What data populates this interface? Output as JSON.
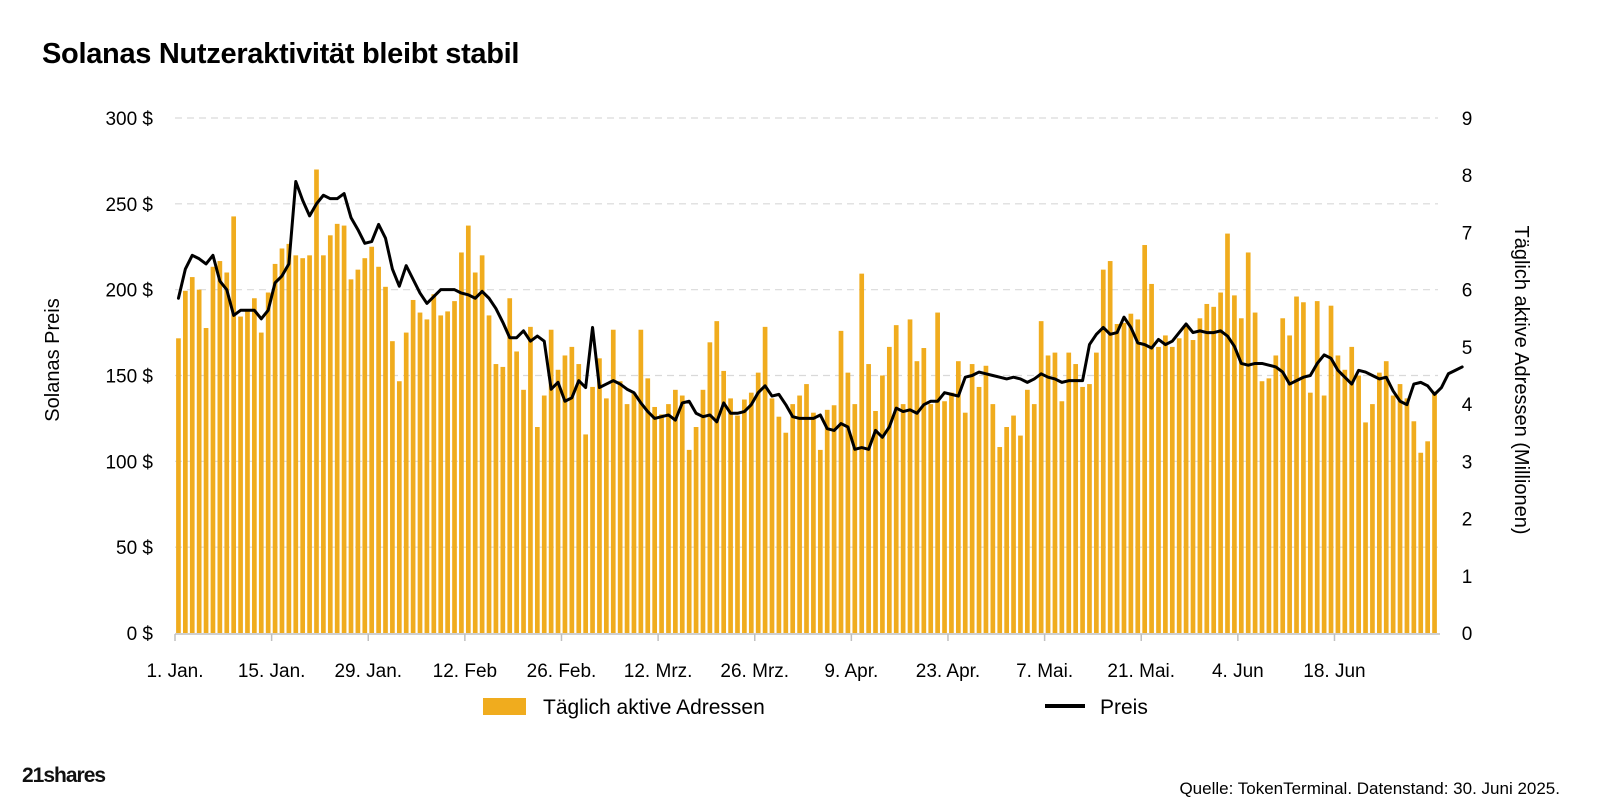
{
  "title": "Solanas Nutzeraktivität bleibt stabil",
  "source": "Quelle: TokenTerminal. Datenstand: 30. Juni 2025.",
  "logo": "21shares",
  "colors": {
    "bars": "#F0AC1E",
    "line": "#000000",
    "grid": "#d9d9d9"
  },
  "chart_data": {
    "type": "bar",
    "ylabel": "Solanas Preis",
    "y2label": "Täglich aktive Adressen (Millionen)",
    "y_ticks": [
      "0 $",
      "50 $",
      "100 $",
      "150 $",
      "200 $",
      "250 $",
      "300 $"
    ],
    "y2_ticks": [
      "0",
      "1",
      "2",
      "3",
      "4",
      "5",
      "6",
      "7",
      "8",
      "9"
    ],
    "ylim": [
      0,
      300
    ],
    "y2lim": [
      0,
      9
    ],
    "x_ticks": [
      "1. Jan.",
      "15. Jan.",
      "29. Jan.",
      "12. Feb",
      "26. Feb.",
      "12. Mrz.",
      "26. Mrz.",
      "9. Apr.",
      "23. Apr.",
      "7. Mai.",
      "21. Mai.",
      "4. Jun",
      "18. Jun"
    ],
    "x_tick_days": [
      0,
      14,
      28,
      42,
      56,
      70,
      84,
      98,
      112,
      126,
      140,
      154,
      168
    ],
    "legend_position": "bottom",
    "grid": true,
    "series": [
      {
        "name": "Täglich aktive Adressen",
        "type": "bar",
        "axis": "right",
        "values": [
          5.15,
          5.98,
          6.22,
          6.0,
          5.33,
          6.4,
          6.5,
          6.3,
          7.28,
          5.53,
          5.62,
          5.85,
          5.25,
          5.95,
          6.45,
          6.72,
          6.8,
          6.6,
          6.55,
          6.6,
          8.1,
          6.6,
          6.95,
          7.15,
          7.12,
          6.18,
          6.35,
          6.55,
          6.75,
          6.4,
          6.05,
          5.1,
          4.4,
          5.25,
          5.82,
          5.6,
          5.48,
          5.92,
          5.55,
          5.62,
          5.8,
          6.65,
          7.12,
          6.3,
          6.6,
          5.55,
          4.7,
          4.65,
          5.85,
          4.92,
          4.25,
          5.35,
          3.6,
          4.15,
          5.3,
          4.6,
          4.85,
          5.0,
          4.7,
          3.47,
          4.3,
          4.8,
          4.1,
          5.3,
          4.4,
          4.0,
          4.2,
          5.3,
          4.45,
          3.95,
          3.82,
          4.0,
          4.25,
          4.15,
          3.2,
          3.6,
          4.25,
          5.08,
          5.45,
          4.58,
          4.1,
          3.8,
          4.08,
          4.2,
          4.55,
          5.35,
          4.1,
          3.78,
          3.5,
          4.0,
          4.15,
          4.35,
          3.85,
          3.2,
          3.9,
          3.98,
          5.28,
          4.55,
          4.0,
          6.28,
          4.7,
          3.88,
          4.5,
          5.0,
          5.38,
          4.0,
          5.48,
          4.75,
          4.98,
          4.0,
          5.6,
          4.05,
          4.2,
          4.75,
          3.85,
          4.7,
          4.3,
          4.67,
          4.0,
          3.25,
          3.6,
          3.8,
          3.45,
          4.25,
          4.0,
          5.45,
          4.85,
          4.9,
          4.05,
          4.9,
          4.7,
          4.3,
          4.35,
          4.9,
          6.35,
          6.5,
          5.4,
          5.42,
          5.58,
          5.48,
          6.78,
          6.1,
          5.0,
          5.2,
          5.0,
          5.15,
          5.38,
          5.12,
          5.5,
          5.75,
          5.7,
          5.95,
          6.98,
          5.9,
          5.5,
          6.65,
          5.6,
          4.4,
          4.45,
          4.85,
          5.5,
          5.2,
          5.88,
          5.78,
          4.2,
          5.8,
          4.15,
          5.72,
          4.85,
          4.6,
          5.0,
          4.5,
          3.68,
          4.0,
          4.55,
          4.75,
          4.15,
          4.35,
          4.1,
          3.7,
          3.15,
          3.35,
          4.22
        ]
      },
      {
        "name": "Preis",
        "type": "line",
        "axis": "left",
        "values": [
          195,
          212,
          220,
          218,
          215,
          220,
          205,
          200,
          185,
          188,
          188,
          188,
          183,
          188,
          204,
          208,
          215,
          263,
          252,
          243,
          250,
          255,
          253,
          253,
          256,
          242,
          235,
          227,
          228,
          238,
          230,
          212,
          202,
          214,
          206,
          198,
          192,
          196,
          200,
          200,
          200,
          198,
          197,
          195,
          199,
          195,
          189,
          181,
          172,
          172,
          176,
          170,
          173,
          170,
          142,
          146,
          135,
          137,
          147,
          143,
          178,
          143,
          145,
          147,
          145,
          142,
          140,
          134,
          129,
          125,
          126,
          127,
          124,
          134,
          135,
          128,
          126,
          127,
          123,
          134,
          128,
          128,
          129,
          133,
          140,
          144,
          138,
          139,
          133,
          126,
          125,
          125,
          125,
          127,
          119,
          118,
          122,
          120,
          107,
          108,
          107,
          118,
          114,
          120,
          131,
          129,
          130,
          128,
          133,
          135,
          135,
          140,
          139,
          138,
          149,
          150,
          152,
          151,
          150,
          149,
          148,
          149,
          148,
          146,
          148,
          151,
          149,
          148,
          146,
          147,
          147,
          147,
          168,
          174,
          178,
          174,
          175,
          184,
          178,
          169,
          168,
          166,
          171,
          168,
          170,
          175,
          180,
          175,
          176,
          175,
          175,
          176,
          173,
          167,
          157,
          156,
          157,
          157,
          156,
          155,
          152,
          145,
          147,
          149,
          150,
          157,
          162,
          160,
          153,
          149,
          145,
          153,
          152,
          150,
          148,
          149,
          141,
          135,
          133,
          145,
          146,
          144,
          139,
          143,
          151,
          153,
          155
        ]
      }
    ]
  }
}
